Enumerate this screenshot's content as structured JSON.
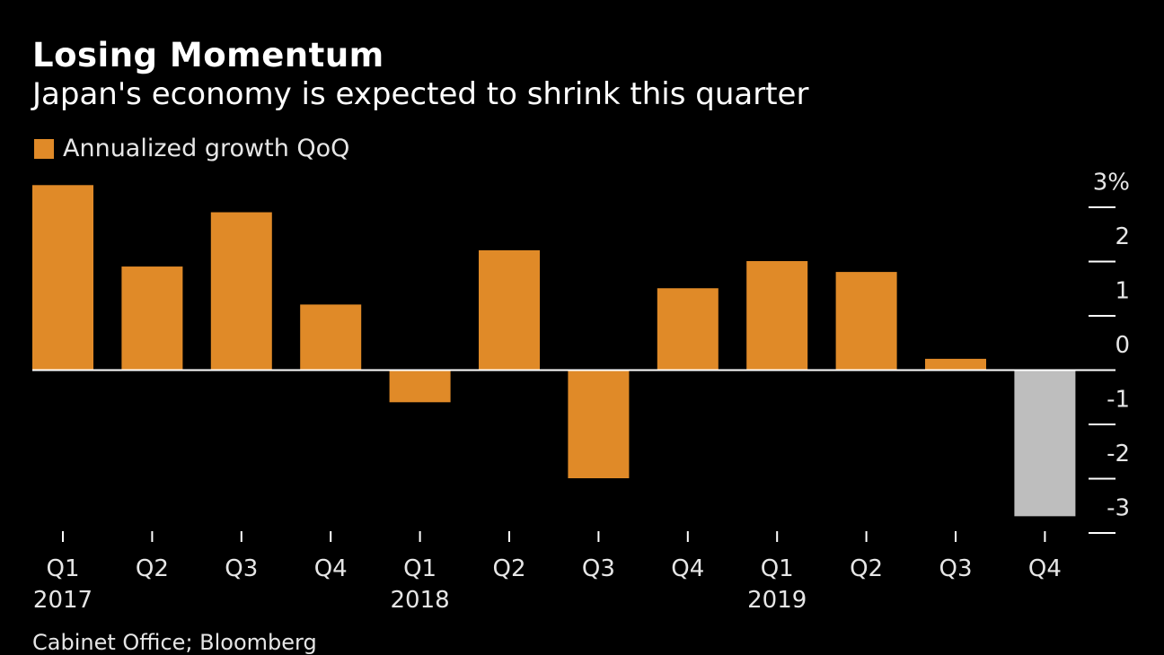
{
  "colors": {
    "background": "#000000",
    "bar": "#E08A28",
    "forecast_bar": "#BEBEBE",
    "text": "#FFFFFF",
    "axis": "#FFFFFF"
  },
  "source": "Cabinet Office; Bloomberg",
  "chart_data": {
    "type": "bar",
    "title": "Losing Momentum",
    "subtitle": "Japan's economy is expected to shrink this quarter",
    "legend": [
      "Annualized growth QoQ"
    ],
    "categories": [
      "Q1",
      "Q2",
      "Q3",
      "Q4",
      "Q1",
      "Q2",
      "Q3",
      "Q4",
      "Q1",
      "Q2",
      "Q3",
      "Q4"
    ],
    "year_labels": [
      "2017",
      "",
      "",
      "",
      "2018",
      "",
      "",
      "",
      "2019",
      "",
      "",
      ""
    ],
    "values": [
      3.4,
      1.9,
      2.9,
      1.2,
      -0.6,
      2.2,
      -2.0,
      1.5,
      2.0,
      1.8,
      0.2,
      -2.7
    ],
    "forecast": [
      false,
      false,
      false,
      false,
      false,
      false,
      false,
      false,
      false,
      false,
      false,
      true
    ],
    "y_ticks": [
      {
        "value": 3,
        "label": "3%"
      },
      {
        "value": 2,
        "label": "2"
      },
      {
        "value": 1,
        "label": "1"
      },
      {
        "value": 0,
        "label": "0"
      },
      {
        "value": -1,
        "label": "-1"
      },
      {
        "value": -2,
        "label": "-2"
      },
      {
        "value": -3,
        "label": "-3"
      }
    ],
    "ylim": [
      -3,
      3.4
    ],
    "xlabel": "",
    "ylabel": ""
  }
}
